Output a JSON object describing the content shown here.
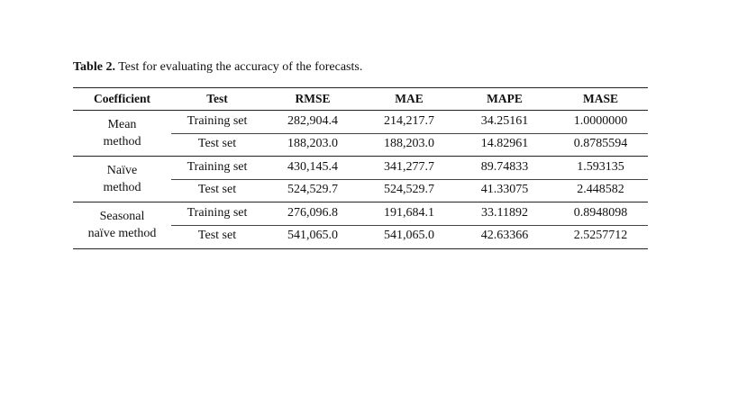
{
  "caption": {
    "label": "Table 2.",
    "text": "Test for evaluating the accuracy of the forecasts."
  },
  "table": {
    "headers": [
      "Coefficient",
      "Test",
      "RMSE",
      "MAE",
      "MAPE",
      "MASE"
    ],
    "groups": [
      {
        "coefficient": [
          "Mean",
          "method"
        ],
        "rows": [
          [
            "Training set",
            "282,904.4",
            "214,217.7",
            "34.25161",
            "1.0000000"
          ],
          [
            "Test set",
            "188,203.0",
            "188,203.0",
            "14.82961",
            "0.8785594"
          ]
        ]
      },
      {
        "coefficient": [
          "Naïve",
          "method"
        ],
        "rows": [
          [
            "Training set",
            "430,145.4",
            "341,277.7",
            "89.74833",
            "1.593135"
          ],
          [
            "Test set",
            "524,529.7",
            "524,529.7",
            "41.33075",
            "2.448582"
          ]
        ]
      },
      {
        "coefficient": [
          "Seasonal",
          "naïve method"
        ],
        "rows": [
          [
            "Training set",
            "276,096.8",
            "191,684.1",
            "33.11892",
            "0.8948098"
          ],
          [
            "Test set",
            "541,065.0",
            "541,065.0",
            "42.63366",
            "2.5257712"
          ]
        ]
      }
    ]
  }
}
